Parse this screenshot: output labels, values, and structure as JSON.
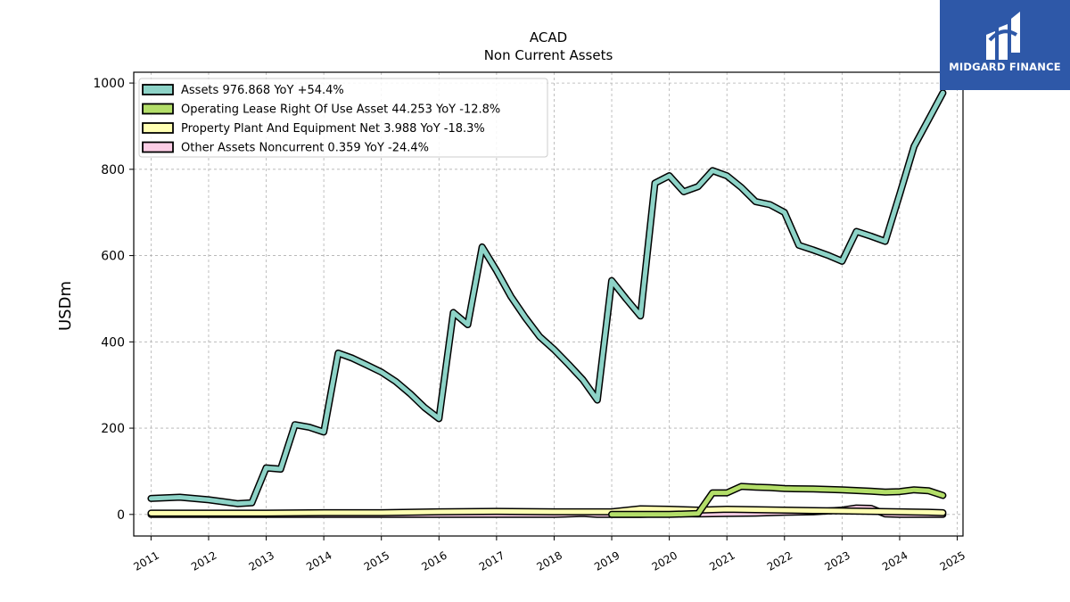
{
  "brand": {
    "name": "MIDGARD FINANCE",
    "color": "#2e58a8"
  },
  "chart_data": {
    "type": "line",
    "title": "ACAD",
    "subtitle": "Non Current  Assets",
    "xlabel": "",
    "ylabel": "USDm",
    "xlim": [
      2010.7,
      2025.1
    ],
    "ylim": [
      -50,
      1025
    ],
    "grid": true,
    "legend_position": "top-left",
    "x_ticks": [
      "2011",
      "2012",
      "2013",
      "2014",
      "2015",
      "2016",
      "2017",
      "2018",
      "2019",
      "2020",
      "2021",
      "2022",
      "2023",
      "2024",
      "2025"
    ],
    "y_ticks": [
      "0",
      "200",
      "400",
      "600",
      "800",
      "1000"
    ],
    "series": [
      {
        "name": "Assets",
        "legend_label": "Assets  976.868 YoY +54.4%",
        "color": "#8dd3c7",
        "points": [
          [
            2011.0,
            37
          ],
          [
            2011.5,
            40
          ],
          [
            2012.0,
            34
          ],
          [
            2012.5,
            25
          ],
          [
            2012.75,
            27
          ],
          [
            2013.0,
            108
          ],
          [
            2013.25,
            105
          ],
          [
            2013.5,
            208
          ],
          [
            2013.75,
            202
          ],
          [
            2014.0,
            191
          ],
          [
            2014.25,
            374
          ],
          [
            2014.5,
            362
          ],
          [
            2014.75,
            346
          ],
          [
            2015.0,
            330
          ],
          [
            2015.25,
            308
          ],
          [
            2015.5,
            280
          ],
          [
            2015.75,
            248
          ],
          [
            2016.0,
            222
          ],
          [
            2016.25,
            468
          ],
          [
            2016.5,
            440
          ],
          [
            2016.75,
            620
          ],
          [
            2017.0,
            565
          ],
          [
            2017.25,
            505
          ],
          [
            2017.5,
            456
          ],
          [
            2017.75,
            412
          ],
          [
            2018.0,
            382
          ],
          [
            2018.25,
            348
          ],
          [
            2018.5,
            312
          ],
          [
            2018.75,
            265
          ],
          [
            2019.0,
            542
          ],
          [
            2019.25,
            500
          ],
          [
            2019.5,
            460
          ],
          [
            2019.75,
            768
          ],
          [
            2020.0,
            785
          ],
          [
            2020.25,
            748
          ],
          [
            2020.5,
            760
          ],
          [
            2020.75,
            797
          ],
          [
            2021.0,
            785
          ],
          [
            2021.25,
            758
          ],
          [
            2021.5,
            725
          ],
          [
            2021.75,
            718
          ],
          [
            2022.0,
            700
          ],
          [
            2022.25,
            624
          ],
          [
            2022.5,
            613
          ],
          [
            2022.75,
            601
          ],
          [
            2023.0,
            587
          ],
          [
            2023.25,
            656
          ],
          [
            2023.5,
            645
          ],
          [
            2023.75,
            633
          ],
          [
            2024.0,
            742
          ],
          [
            2024.25,
            853
          ],
          [
            2024.5,
            915
          ],
          [
            2024.75,
            977
          ]
        ]
      },
      {
        "name": "Operating Lease Right Of Use Asset",
        "legend_label": "Operating Lease Right Of Use Asset  44.253 YoY -12.8%",
        "color": "#b3de69",
        "points": [
          [
            2019.0,
            0
          ],
          [
            2019.5,
            0
          ],
          [
            2020.0,
            0
          ],
          [
            2020.5,
            2
          ],
          [
            2020.75,
            50
          ],
          [
            2021.0,
            50
          ],
          [
            2021.25,
            65
          ],
          [
            2021.5,
            63
          ],
          [
            2021.75,
            62
          ],
          [
            2022.0,
            60
          ],
          [
            2022.5,
            59
          ],
          [
            2023.0,
            57
          ],
          [
            2023.5,
            54
          ],
          [
            2023.75,
            52
          ],
          [
            2024.0,
            53
          ],
          [
            2024.25,
            57
          ],
          [
            2024.5,
            55
          ],
          [
            2024.75,
            44
          ]
        ]
      },
      {
        "name": "Property Plant And Equipment Net",
        "legend_label": "Property Plant And Equipment Net  3.988 YoY -18.3%",
        "color": "#ffffb3",
        "points": [
          [
            2011.0,
            3
          ],
          [
            2012.0,
            3
          ],
          [
            2013.0,
            3
          ],
          [
            2014.0,
            4
          ],
          [
            2015.0,
            4
          ],
          [
            2016.0,
            6
          ],
          [
            2017.0,
            7
          ],
          [
            2018.0,
            6
          ],
          [
            2018.5,
            6
          ],
          [
            2019.0,
            6
          ],
          [
            2019.5,
            13
          ],
          [
            2020.0,
            12
          ],
          [
            2020.5,
            10
          ],
          [
            2021.0,
            12
          ],
          [
            2021.5,
            11
          ],
          [
            2022.0,
            10
          ],
          [
            2022.5,
            9
          ],
          [
            2023.0,
            8
          ],
          [
            2023.5,
            7
          ],
          [
            2024.0,
            6
          ],
          [
            2024.5,
            5
          ],
          [
            2024.75,
            4
          ]
        ]
      },
      {
        "name": "Other Assets Noncurrent",
        "legend_label": "Other Assets Noncurrent  0.359 YoY -24.4%",
        "color": "#fccde5",
        "points": [
          [
            2011.0,
            0
          ],
          [
            2012.0,
            0
          ],
          [
            2013.0,
            0
          ],
          [
            2014.0,
            0
          ],
          [
            2015.0,
            0
          ],
          [
            2016.0,
            0
          ],
          [
            2017.0,
            0
          ],
          [
            2018.0,
            0
          ],
          [
            2018.5,
            2
          ],
          [
            2018.75,
            0
          ],
          [
            2019.0,
            0
          ],
          [
            2019.5,
            0
          ],
          [
            2020.0,
            2
          ],
          [
            2020.5,
            1
          ],
          [
            2021.0,
            2
          ],
          [
            2021.5,
            3
          ],
          [
            2022.0,
            5
          ],
          [
            2022.5,
            6
          ],
          [
            2023.0,
            10
          ],
          [
            2023.25,
            15
          ],
          [
            2023.5,
            14
          ],
          [
            2023.75,
            1
          ],
          [
            2024.0,
            0
          ],
          [
            2024.5,
            0
          ],
          [
            2024.75,
            0
          ]
        ]
      }
    ]
  }
}
